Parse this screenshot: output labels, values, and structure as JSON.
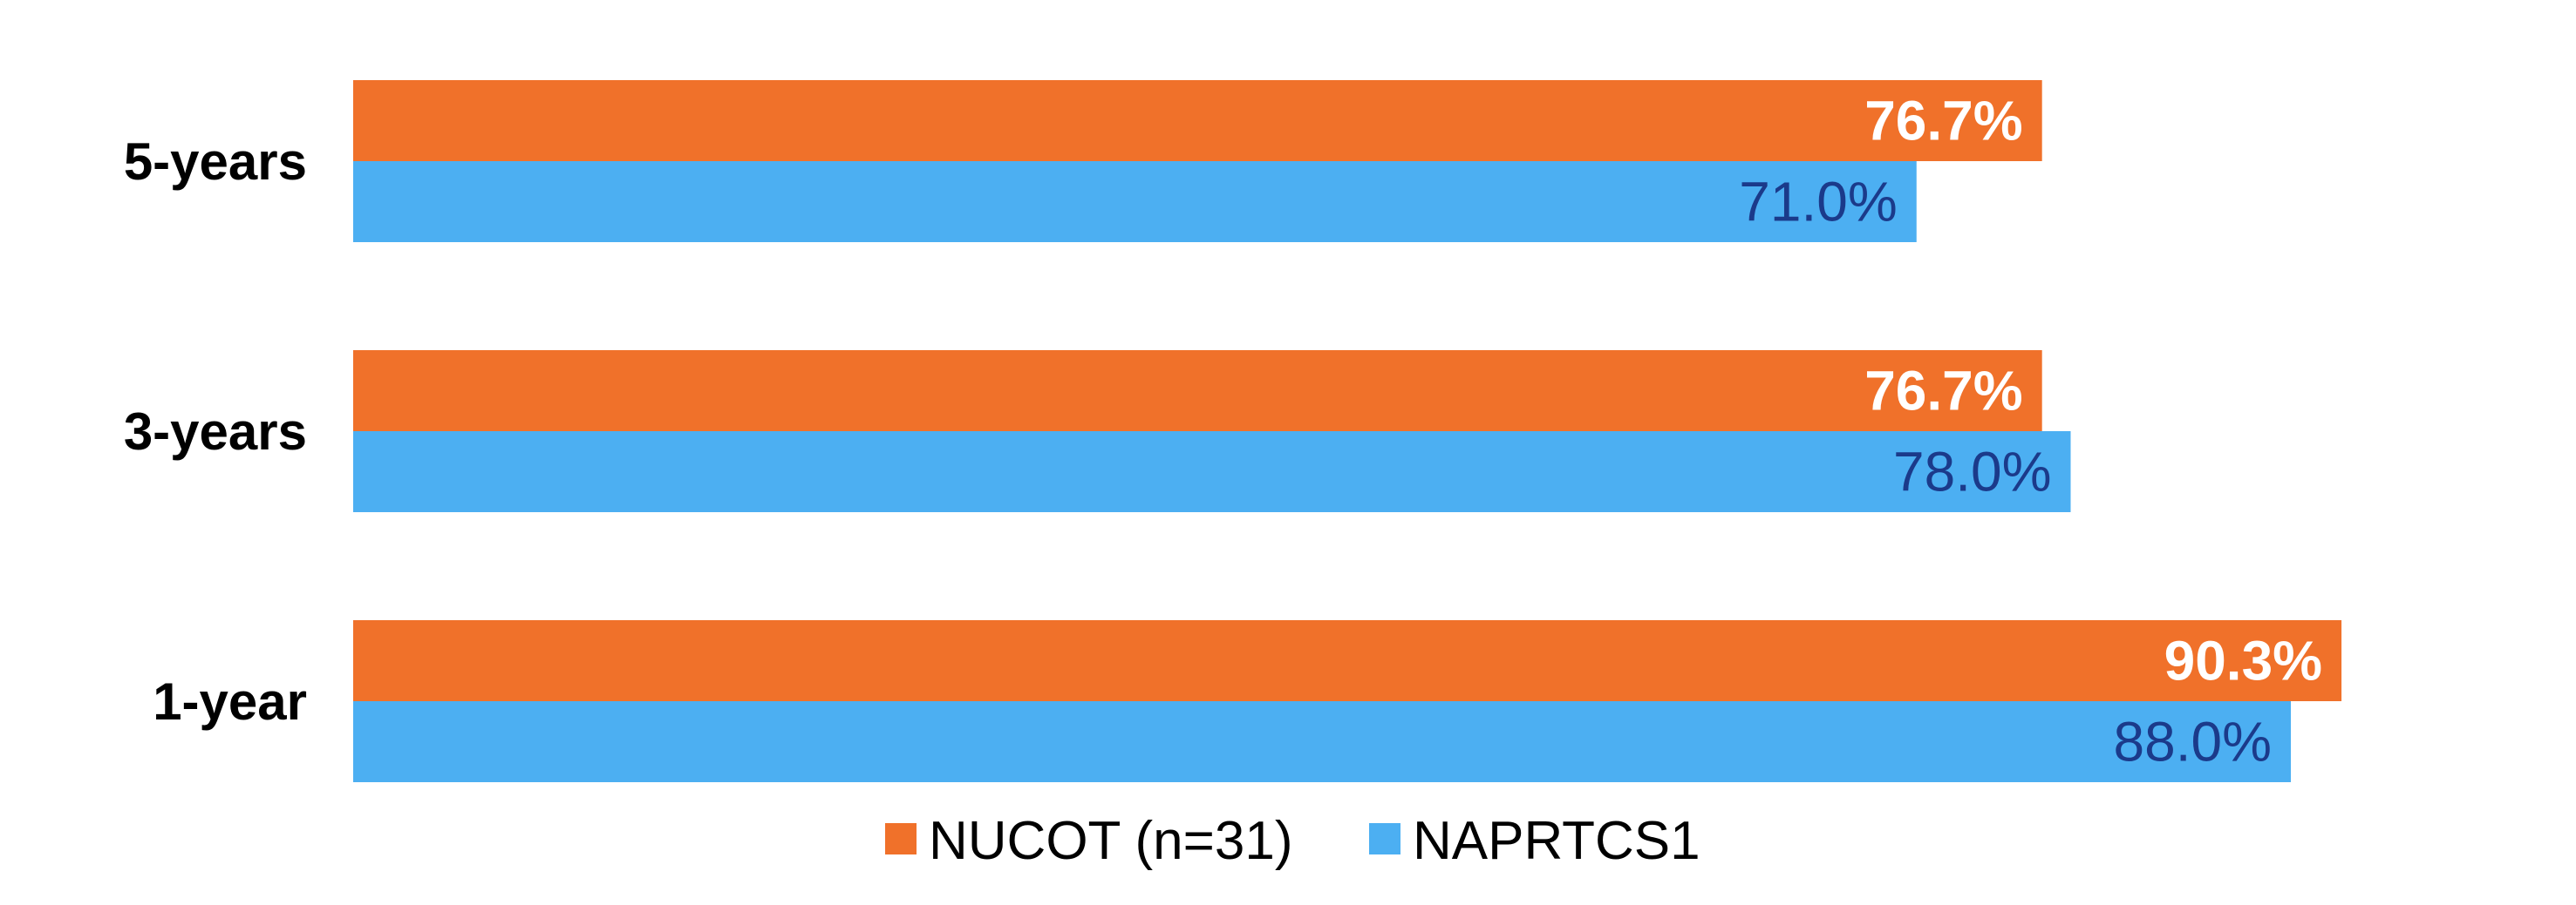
{
  "chart_data": {
    "type": "bar",
    "orientation": "horizontal",
    "categories": [
      "5-years",
      "3-years",
      "1-year"
    ],
    "series": [
      {
        "name": "NUCOT (n=31)",
        "values": [
          76.7,
          76.7,
          90.3
        ],
        "labels": [
          "76.7%",
          "76.7%",
          "90.3%"
        ],
        "color": "#F0712A",
        "label_color": "#FFFFFF",
        "label_bold": true
      },
      {
        "name": "NAPRTCS1",
        "values": [
          71.0,
          78.0,
          88.0
        ],
        "labels": [
          "71.0%",
          "78.0%",
          "88.0%"
        ],
        "color": "#4CAFF2",
        "label_color": "#1B3A8A",
        "label_bold": false
      }
    ],
    "xlim": [
      0,
      100
    ],
    "grid": false,
    "legend_position": "bottom"
  }
}
